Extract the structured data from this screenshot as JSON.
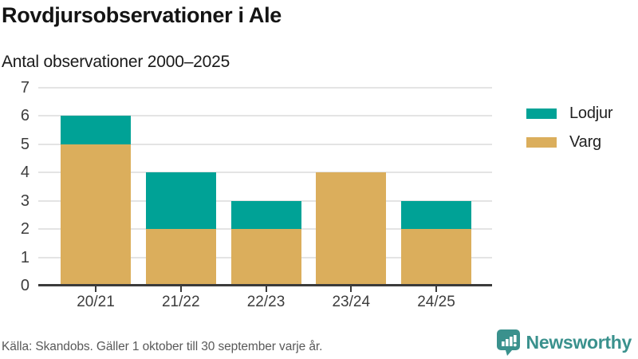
{
  "header": {
    "title": "Rovdjursobservationer i Ale",
    "subtitle": "Antal observationer 2000–2025"
  },
  "chart_data": {
    "type": "bar",
    "stacked": true,
    "title": "Rovdjursobservationer i Ale",
    "subtitle": "Antal observationer 2000–2025",
    "xlabel": "",
    "ylabel": "",
    "categories": [
      "20/21",
      "21/22",
      "22/23",
      "23/24",
      "24/25"
    ],
    "series": [
      {
        "name": "Varg",
        "color": "#DBAE5C",
        "values": [
          5,
          2,
          2,
          4,
          2
        ]
      },
      {
        "name": "Lodjur",
        "color": "#00A296",
        "values": [
          1,
          2,
          1,
          0,
          1
        ]
      }
    ],
    "totals": [
      6,
      4,
      3,
      4,
      3
    ],
    "ylim": [
      0,
      7
    ],
    "yticks": [
      0,
      1,
      2,
      3,
      4,
      5,
      6,
      7
    ],
    "grid": true,
    "legend_position": "right"
  },
  "legend": {
    "items": [
      {
        "label": "Lodjur",
        "color": "#00A296"
      },
      {
        "label": "Varg",
        "color": "#DBAE5C"
      }
    ]
  },
  "footer": {
    "source": "Källa: Skandobs. Gäller 1 oktober till 30 september varje år."
  },
  "branding": {
    "name": "Newsworthy",
    "color": "#3a918d",
    "icon": "bar-chart-speech-bubble"
  }
}
